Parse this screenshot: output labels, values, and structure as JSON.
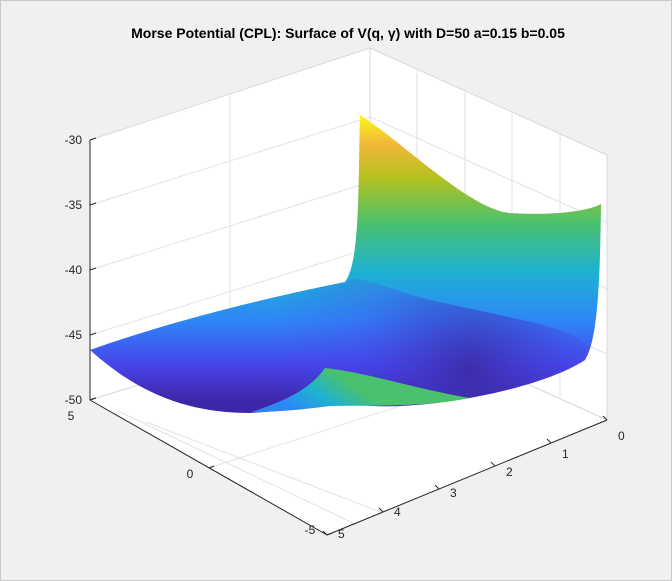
{
  "figure": {
    "background": "#f0f0f0",
    "axes_background": "#ffffff"
  },
  "chart_data": {
    "type": "surface",
    "title": "Morse Potential (CPL): Surface of V(q, γ) with D=50 a=0.15 b=0.05",
    "colormap": "parula",
    "colormap_stops": [
      "#3e26a8",
      "#4743e9",
      "#2e87f7",
      "#1eb1d3",
      "#4ac16d",
      "#b4c11f",
      "#f3b73a",
      "#f9fb15"
    ],
    "xlabel": "",
    "ylabel": "",
    "zlabel": "",
    "z_axis": {
      "ticks": [
        -30,
        -35,
        -40,
        -45,
        -50
      ],
      "lim": [
        -50,
        -30
      ]
    },
    "gamma_axis": {
      "ticks": [
        5,
        0,
        -5
      ],
      "lim": [
        -5,
        5
      ]
    },
    "q_axis": {
      "ticks": [
        5,
        4,
        3,
        2,
        1,
        0
      ],
      "lim": [
        0,
        5
      ]
    },
    "grid": true,
    "box": true,
    "surface_corner_values": {
      "q0_gamma_minus5": -31.0,
      "q0_gamma_plus5": -36.0,
      "q5_gamma_minus5": -46.0,
      "q5_gamma_plus5": -47.0,
      "minimum": -49.0
    }
  }
}
